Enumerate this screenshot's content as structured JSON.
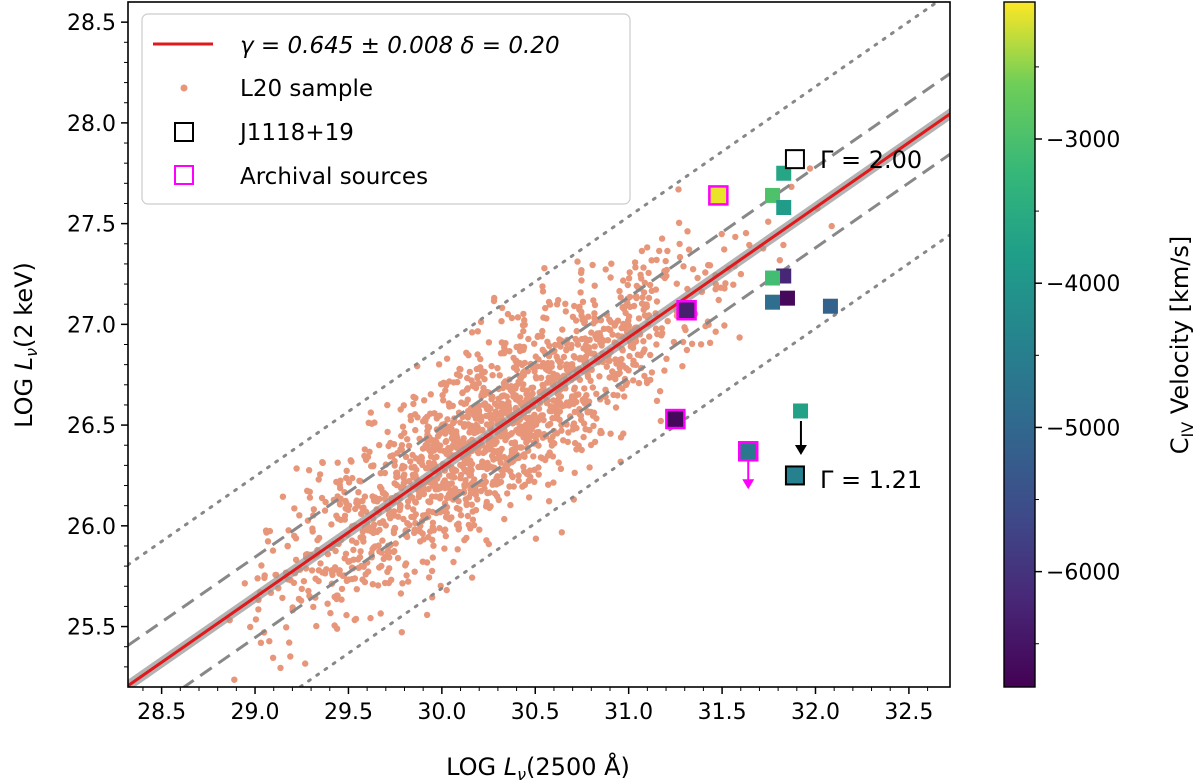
{
  "chart_data": {
    "type": "scatter",
    "xlabel_main": "LOG ",
    "xlabel_var": "L",
    "xlabel_sub": "ν",
    "xlabel_tail": "(2500 Å)",
    "ylabel_main": "LOG ",
    "ylabel_var": "L",
    "ylabel_sub": "ν",
    "ylabel_tail": "(2 keV)",
    "xlim": [
      28.32,
      32.72
    ],
    "ylim": [
      25.2,
      28.6
    ],
    "xticks": [
      "28.5",
      "29.0",
      "29.5",
      "30.0",
      "30.5",
      "31.0",
      "31.5",
      "32.0",
      "32.5"
    ],
    "xtick_values": [
      28.5,
      29.0,
      29.5,
      30.0,
      30.5,
      31.0,
      31.5,
      32.0,
      32.5
    ],
    "yticks": [
      "25.5",
      "26.0",
      "26.5",
      "27.0",
      "27.5",
      "28.0",
      "28.5"
    ],
    "ytick_values": [
      25.5,
      26.0,
      26.5,
      27.0,
      27.5,
      28.0,
      28.5
    ],
    "grid": false,
    "legend_position": "top-left",
    "legend": {
      "fit_label": "γ = 0.645 ± 0.008   δ = 0.20",
      "sample_label": "L20 sample",
      "target_label": "J1118+19",
      "archival_label": "Archival sources"
    },
    "fit": {
      "slope": 0.645,
      "intercept_at_30": 26.29,
      "delta": 0.2
    },
    "colorbar": {
      "label_main": "C",
      "label_sub": "IV",
      "label_tail": " Velocity [km/s]",
      "range": [
        -6800,
        -2050
      ],
      "ticks": [
        "−3000",
        "−4000",
        "−5000",
        "−6000"
      ],
      "tick_values": [
        -3000,
        -4000,
        -5000,
        -6000
      ]
    },
    "colored_squares": [
      {
        "x": 31.83,
        "y": 27.75,
        "vel": -4000
      },
      {
        "x": 31.77,
        "y": 27.64,
        "vel": -3400
      },
      {
        "x": 31.83,
        "y": 27.58,
        "vel": -4200
      },
      {
        "x": 31.83,
        "y": 27.24,
        "vel": -6300
      },
      {
        "x": 31.77,
        "y": 27.23,
        "vel": -3500
      },
      {
        "x": 31.85,
        "y": 27.13,
        "vel": -6700
      },
      {
        "x": 31.77,
        "y": 27.11,
        "vel": -5100
      },
      {
        "x": 32.08,
        "y": 27.09,
        "vel": -5300
      },
      {
        "x": 31.92,
        "y": 26.57,
        "vel": -4100
      }
    ],
    "archival_sources": [
      {
        "x": 31.48,
        "y": 27.64,
        "vel": -2200
      },
      {
        "x": 31.31,
        "y": 27.07,
        "vel": -6400
      },
      {
        "x": 31.25,
        "y": 26.53,
        "vel": -6700
      },
      {
        "x": 31.64,
        "y": 26.37,
        "vel": -4900,
        "upper_limit": true
      }
    ],
    "target": {
      "x": 31.89,
      "y": 27.82,
      "x_lower": 31.89,
      "y_lower": 26.25,
      "vel_lower": -4700
    },
    "annotations": {
      "upper": "Γ = 2.00",
      "lower": "Γ = 1.21"
    },
    "colors": {
      "sample": "#e8967a",
      "fit": "#e0191c",
      "band": "#999999",
      "archival_edge": "#ff00ff",
      "target_edge": "#000000"
    }
  }
}
